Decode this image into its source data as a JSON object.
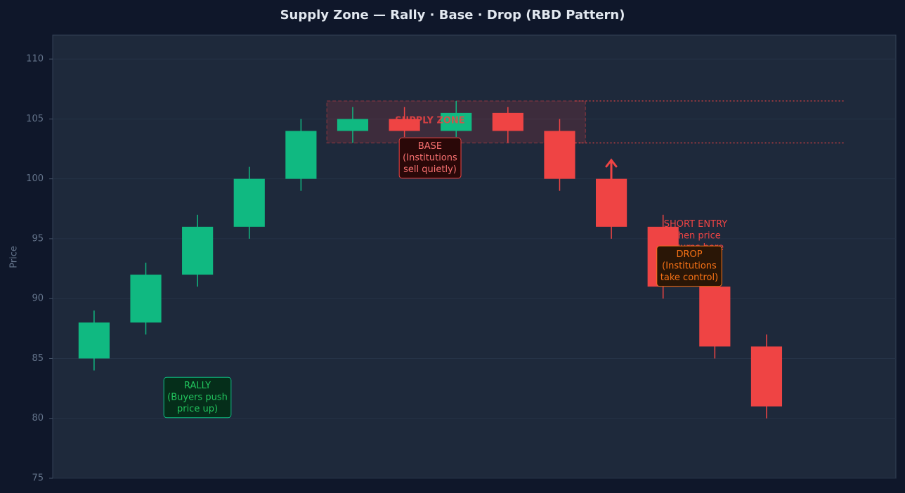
{
  "chart_data": {
    "type": "candlestick",
    "title": "Supply Zone — Rally · Base · Drop (RBD Pattern)",
    "y_label": "Price",
    "x": [
      0,
      1,
      2,
      3,
      4,
      5,
      6,
      7,
      8,
      9,
      10,
      11,
      12,
      13
    ],
    "open": [
      85,
      88,
      92,
      96,
      100,
      104,
      105,
      104,
      105.5,
      104,
      100,
      96,
      91,
      86
    ],
    "high": [
      89,
      93,
      97,
      101,
      105,
      106,
      106,
      106.5,
      106,
      105,
      101,
      97,
      92,
      87
    ],
    "low": [
      84,
      87,
      91,
      95,
      99,
      103,
      103.5,
      103.5,
      103,
      99,
      95,
      90,
      85,
      80
    ],
    "close": [
      88,
      92,
      96,
      100,
      104,
      105,
      104,
      105.5,
      104,
      100,
      96,
      91,
      86,
      81
    ],
    "up_color": "#10b981",
    "down_color": "#ef4444",
    "xlim": [
      -0.8,
      15.5
    ],
    "ylim": [
      75,
      112
    ],
    "yticks": [
      75,
      80,
      85,
      90,
      95,
      100,
      105,
      110
    ],
    "grid": true,
    "zone": {
      "label": "SUPPLY ZONE",
      "low": 103,
      "high": 106.5,
      "x_start": 4.5,
      "x_end": 9.5,
      "line_start": 9.3,
      "line_end": 14.5,
      "color": "#ef4444"
    },
    "annotations": [
      {
        "lines": [
          "RALLY",
          "(Buyers push",
          "price up)"
        ]
      },
      {
        "lines": [
          "BASE",
          "(Institutions",
          "sell quietly)"
        ]
      },
      {
        "lines": [
          "SHORT ENTRY",
          "when price",
          "returns here"
        ]
      },
      {
        "lines": [
          "DROP",
          "(Institutions",
          "take control)"
        ]
      }
    ]
  }
}
